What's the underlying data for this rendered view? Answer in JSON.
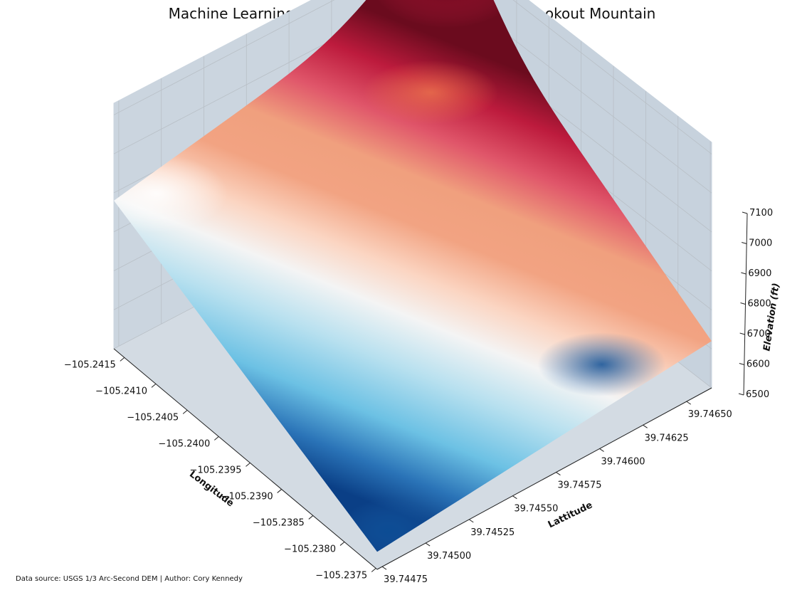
{
  "title": "Machine Learning Predicted Surface for Section of Lookout Mountain",
  "footer": "Data source: USGS 1/3 Arc-Second DEM | Author: Cory Kennedy",
  "chart_data": {
    "type": "surface3d",
    "title": "Machine Learning Predicted Surface for Section of Lookout Mountain",
    "xlabel": "Longitude",
    "ylabel": "Lattitude",
    "zlabel": "Elevation (ft)",
    "colormap": "RdBu_r",
    "grid": true,
    "x_ticks": [
      "−105.2415",
      "−105.2410",
      "−105.2405",
      "−105.2400",
      "−105.2395",
      "−105.2390",
      "−105.2385",
      "−105.2380",
      "−105.2375"
    ],
    "y_ticks": [
      "39.74475",
      "39.74500",
      "39.74525",
      "39.74550",
      "39.74575",
      "39.74600",
      "39.74625",
      "39.74650"
    ],
    "z_ticks": [
      "6500",
      "6600",
      "6700",
      "6800",
      "6900",
      "7000",
      "7100"
    ],
    "xlim": [
      -105.2417,
      -105.2374
    ],
    "ylim": [
      39.74472,
      39.7466
    ],
    "zlim": [
      6500,
      7130
    ],
    "surface_corner_elevations": {
      "lon_min_lat_min": 6880,
      "lon_min_lat_max": 7030,
      "lon_max_lat_min": 6545,
      "lon_max_lat_max": 6620
    },
    "peak": {
      "lon": -105.2414,
      "lat": 39.74645,
      "elevation": 7120
    }
  }
}
